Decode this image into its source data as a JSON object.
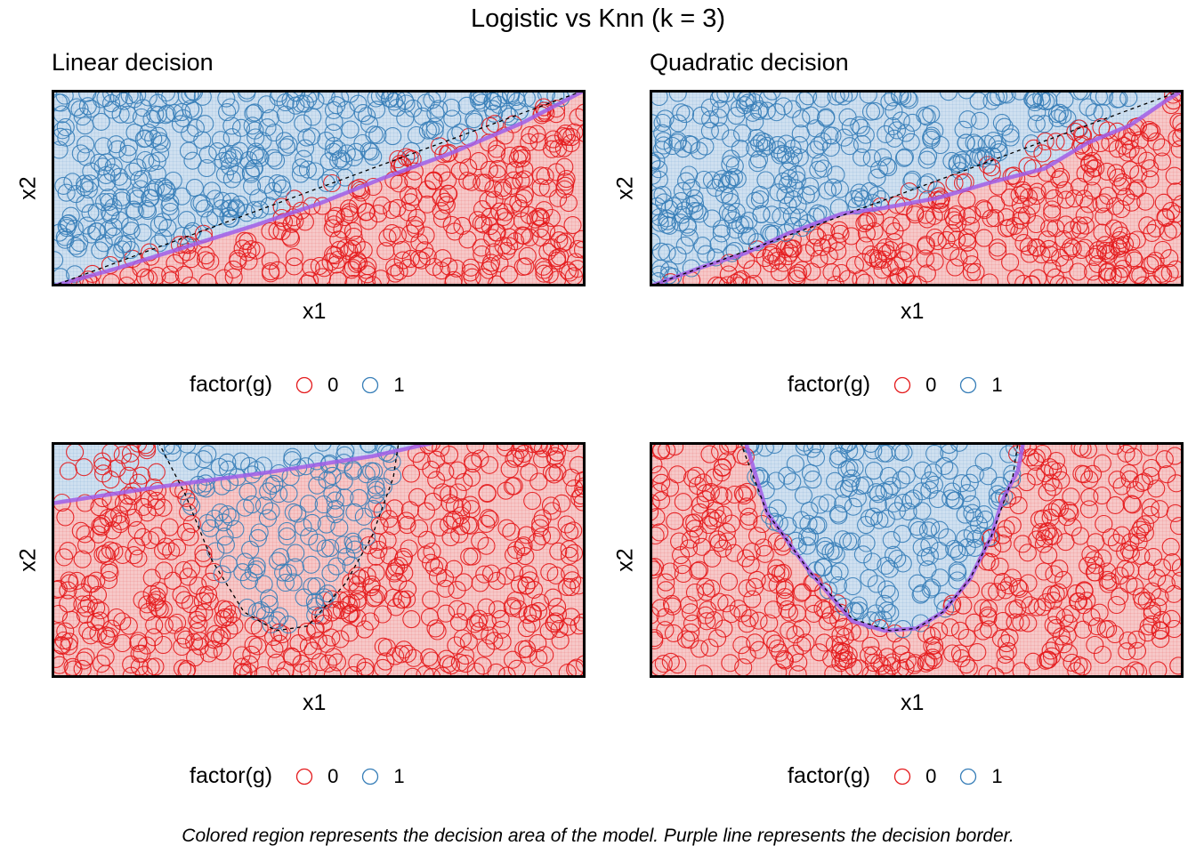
{
  "title": "Logistic vs Knn (k = 3)",
  "caption": "Colored region represents the decision area of the model. Purple line represents the decision border.",
  "colors": {
    "class_0": "#e41a1c",
    "class_1": "#377eb8",
    "region_0": "#f6c8c8",
    "region_1": "#cfe0f0",
    "border": "#a05ee8",
    "dashed": "#000000"
  },
  "legend": {
    "title": "factor(g)",
    "labels": [
      "0",
      "1"
    ]
  },
  "columns": [
    {
      "subtitle": "Linear decision"
    },
    {
      "subtitle": "Quadratic decision"
    }
  ],
  "chart_data": [
    {
      "type": "scatter",
      "title": "Linear decision",
      "xlabel": "x1",
      "ylabel": "x2",
      "xlim": [
        0,
        1
      ],
      "ylim": [
        0,
        1
      ],
      "truth_border": "linear",
      "truth_border_points": [
        [
          0,
          0
        ],
        [
          1,
          1
        ]
      ],
      "model_border_points": [
        [
          0,
          0
        ],
        [
          0.12,
          0.09
        ],
        [
          0.25,
          0.2
        ],
        [
          0.38,
          0.31
        ],
        [
          0.5,
          0.42
        ],
        [
          0.62,
          0.55
        ],
        [
          0.75,
          0.68
        ],
        [
          0.88,
          0.83
        ],
        [
          1,
          1
        ]
      ],
      "series": [
        {
          "name": "0",
          "color": "#e41a1c"
        },
        {
          "name": "1",
          "color": "#377eb8"
        }
      ],
      "legend": "bottom"
    },
    {
      "type": "scatter",
      "title": "Quadratic decision",
      "xlabel": "x1",
      "ylabel": "x2",
      "xlim": [
        0,
        1
      ],
      "ylim": [
        0,
        1
      ],
      "truth_border": "linear",
      "truth_border_points": [
        [
          0,
          0
        ],
        [
          1,
          1
        ]
      ],
      "model_border_points": [
        [
          0,
          0
        ],
        [
          0.1,
          0.1
        ],
        [
          0.18,
          0.17
        ],
        [
          0.26,
          0.27
        ],
        [
          0.36,
          0.37
        ],
        [
          0.44,
          0.4
        ],
        [
          0.54,
          0.45
        ],
        [
          0.64,
          0.53
        ],
        [
          0.74,
          0.6
        ],
        [
          0.82,
          0.73
        ],
        [
          0.9,
          0.82
        ],
        [
          0.97,
          0.95
        ],
        [
          1,
          1
        ]
      ],
      "series": [
        {
          "name": "0",
          "color": "#e41a1c"
        },
        {
          "name": "1",
          "color": "#377eb8"
        }
      ],
      "legend": "bottom"
    },
    {
      "type": "scatter",
      "title": "",
      "xlabel": "x1",
      "ylabel": "x2",
      "xlim": [
        0,
        1
      ],
      "ylim": [
        0,
        1
      ],
      "truth_border": "quadratic",
      "truth_border_points": [
        [
          0.2,
          1
        ],
        [
          0.25,
          0.78
        ],
        [
          0.3,
          0.5
        ],
        [
          0.36,
          0.28
        ],
        [
          0.42,
          0.2
        ],
        [
          0.48,
          0.22
        ],
        [
          0.55,
          0.4
        ],
        [
          0.6,
          0.6
        ],
        [
          0.64,
          0.85
        ],
        [
          0.65,
          1
        ]
      ],
      "model_border_points": [
        [
          0,
          0.74
        ],
        [
          0.2,
          0.81
        ],
        [
          0.4,
          0.87
        ],
        [
          0.6,
          0.94
        ],
        [
          0.72,
          1
        ]
      ],
      "series": [
        {
          "name": "0",
          "color": "#e41a1c"
        },
        {
          "name": "1",
          "color": "#377eb8"
        }
      ],
      "legend": "bottom"
    },
    {
      "type": "scatter",
      "title": "",
      "xlabel": "x1",
      "ylabel": "x2",
      "xlim": [
        0,
        1
      ],
      "ylim": [
        0,
        1
      ],
      "truth_border": "quadratic",
      "truth_border_points": [
        [
          0.17,
          1
        ],
        [
          0.22,
          0.7
        ],
        [
          0.3,
          0.45
        ],
        [
          0.38,
          0.25
        ],
        [
          0.45,
          0.2
        ],
        [
          0.5,
          0.21
        ],
        [
          0.55,
          0.28
        ],
        [
          0.6,
          0.42
        ],
        [
          0.64,
          0.6
        ],
        [
          0.68,
          0.85
        ],
        [
          0.69,
          1
        ]
      ],
      "model_border_points": [
        [
          0.18,
          1
        ],
        [
          0.22,
          0.7
        ],
        [
          0.3,
          0.45
        ],
        [
          0.38,
          0.24
        ],
        [
          0.44,
          0.2
        ],
        [
          0.5,
          0.21
        ],
        [
          0.55,
          0.28
        ],
        [
          0.6,
          0.42
        ],
        [
          0.64,
          0.6
        ],
        [
          0.66,
          0.75
        ],
        [
          0.69,
          0.88
        ],
        [
          0.7,
          1
        ]
      ],
      "series": [
        {
          "name": "0",
          "color": "#e41a1c"
        },
        {
          "name": "1",
          "color": "#377eb8"
        }
      ],
      "legend": "bottom"
    }
  ]
}
